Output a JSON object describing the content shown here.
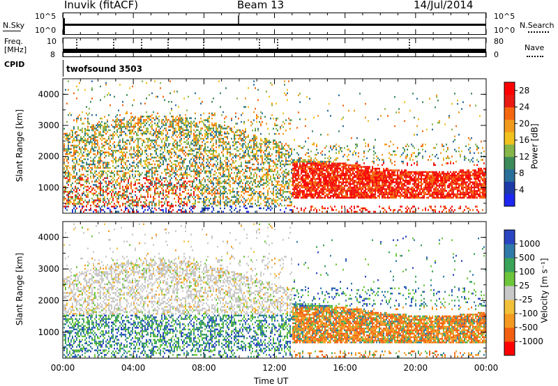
{
  "header": {
    "station": "Inuvik (fitACF)",
    "beam": "Beam 13",
    "date": "14/Jul/2014"
  },
  "top_panels": {
    "nsky": {
      "label": "N.Sky",
      "ticks": [
        "10^5",
        "10^0"
      ]
    },
    "nsearch": {
      "label": "N.Search",
      "ticks": [
        "10^5",
        "10^0"
      ]
    },
    "freq": {
      "label_line1": "Freq.",
      "label_line2": "[MHz]",
      "ticks": [
        "10",
        "8"
      ]
    },
    "nave": {
      "label": "Nave",
      "ticks": [
        "80",
        "0"
      ]
    },
    "cpid": {
      "label": "CPID",
      "value": "twofsound 3503"
    }
  },
  "colors": {
    "power_scale": [
      "#1e27f0",
      "#1c3aa8",
      "#2a6e9a",
      "#3d8a5a",
      "#86b54a",
      "#f1c21d",
      "#f19a1d",
      "#f5670f",
      "#e81a12",
      "#ff0000"
    ],
    "velocity_scale": [
      "#ff0000",
      "#f25f10",
      "#f49a20",
      "#f2c13a",
      "#c8c8c8",
      "#6cc53a",
      "#3aa35a",
      "#2f7aa8",
      "#2a45c2"
    ]
  },
  "chart_data": [
    {
      "type": "heatmap",
      "name": "power",
      "ylabel": "Slant Range [km]",
      "yticks": [
        "4000",
        "3000",
        "2000",
        "1000"
      ],
      "ylim": [
        180,
        4500
      ],
      "colorbar_label": "Power [dB]",
      "colorbar_ticks": [
        "28",
        "24",
        "20",
        "16",
        "12",
        "8",
        "4"
      ],
      "colorbar_range": [
        0,
        30
      ]
    },
    {
      "type": "heatmap",
      "name": "velocity",
      "ylabel": "Slant Range [km]",
      "yticks": [
        "4000",
        "3000",
        "2000",
        "1000"
      ],
      "ylim": [
        180,
        4500
      ],
      "colorbar_label": "Velocity [m s⁻¹]",
      "colorbar_ticks": [
        "1000",
        "500",
        "100",
        "25",
        "-25",
        "-100",
        "-500",
        "-1000"
      ]
    }
  ],
  "time_axis": {
    "xlabel": "Time UT",
    "ticks": [
      "00:00",
      "04:00",
      "08:00",
      "12:00",
      "16:00",
      "20:00",
      "00:00"
    ]
  }
}
